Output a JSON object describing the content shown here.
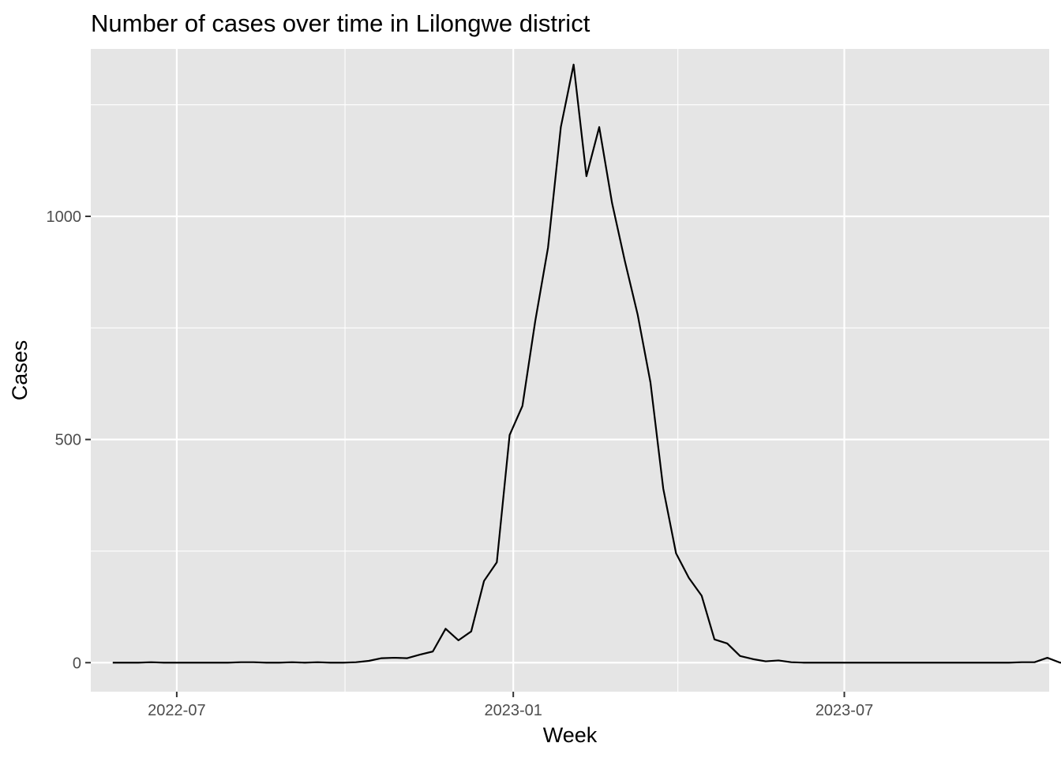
{
  "chart_data": {
    "type": "line",
    "title": "Number of cases over time in Lilongwe district",
    "xlabel": "Week",
    "ylabel": "Cases",
    "x_start": "2022-05-27",
    "x_step_days": 7,
    "x_range": [
      "2022-05-15",
      "2023-10-21"
    ],
    "ylim": [
      -65,
      1375
    ],
    "y_ticks": [
      0,
      500,
      1000
    ],
    "y_minor_ticks": [
      250,
      750,
      1250
    ],
    "x_ticks": [
      {
        "label": "2022-07",
        "date": "2022-07-01"
      },
      {
        "label": "2023-01",
        "date": "2023-01-01"
      },
      {
        "label": "2023-07",
        "date": "2023-07-01"
      }
    ],
    "x_minor_ticks": [
      "2022-10-01",
      "2023-04-01"
    ],
    "series": [
      {
        "name": "Cases",
        "color": "#000000",
        "values": [
          0,
          0,
          0,
          1,
          0,
          0,
          0,
          0,
          0,
          0,
          1,
          1,
          0,
          0,
          1,
          0,
          1,
          0,
          0,
          1,
          4,
          10,
          11,
          10,
          18,
          25,
          76,
          50,
          70,
          183,
          225,
          510,
          575,
          765,
          930,
          1200,
          1340,
          1090,
          1200,
          1030,
          900,
          780,
          628,
          390,
          245,
          190,
          150,
          52,
          43,
          15,
          8,
          3,
          5,
          1,
          0,
          0,
          0,
          0,
          0,
          0,
          0,
          0,
          0,
          0,
          0,
          0,
          0,
          0,
          0,
          0,
          0,
          1,
          1,
          11,
          0,
          1,
          2,
          0
        ]
      }
    ],
    "grid": true,
    "legend": "none",
    "panel_color": "#e5e5e5",
    "grid_color": "#ffffff"
  }
}
